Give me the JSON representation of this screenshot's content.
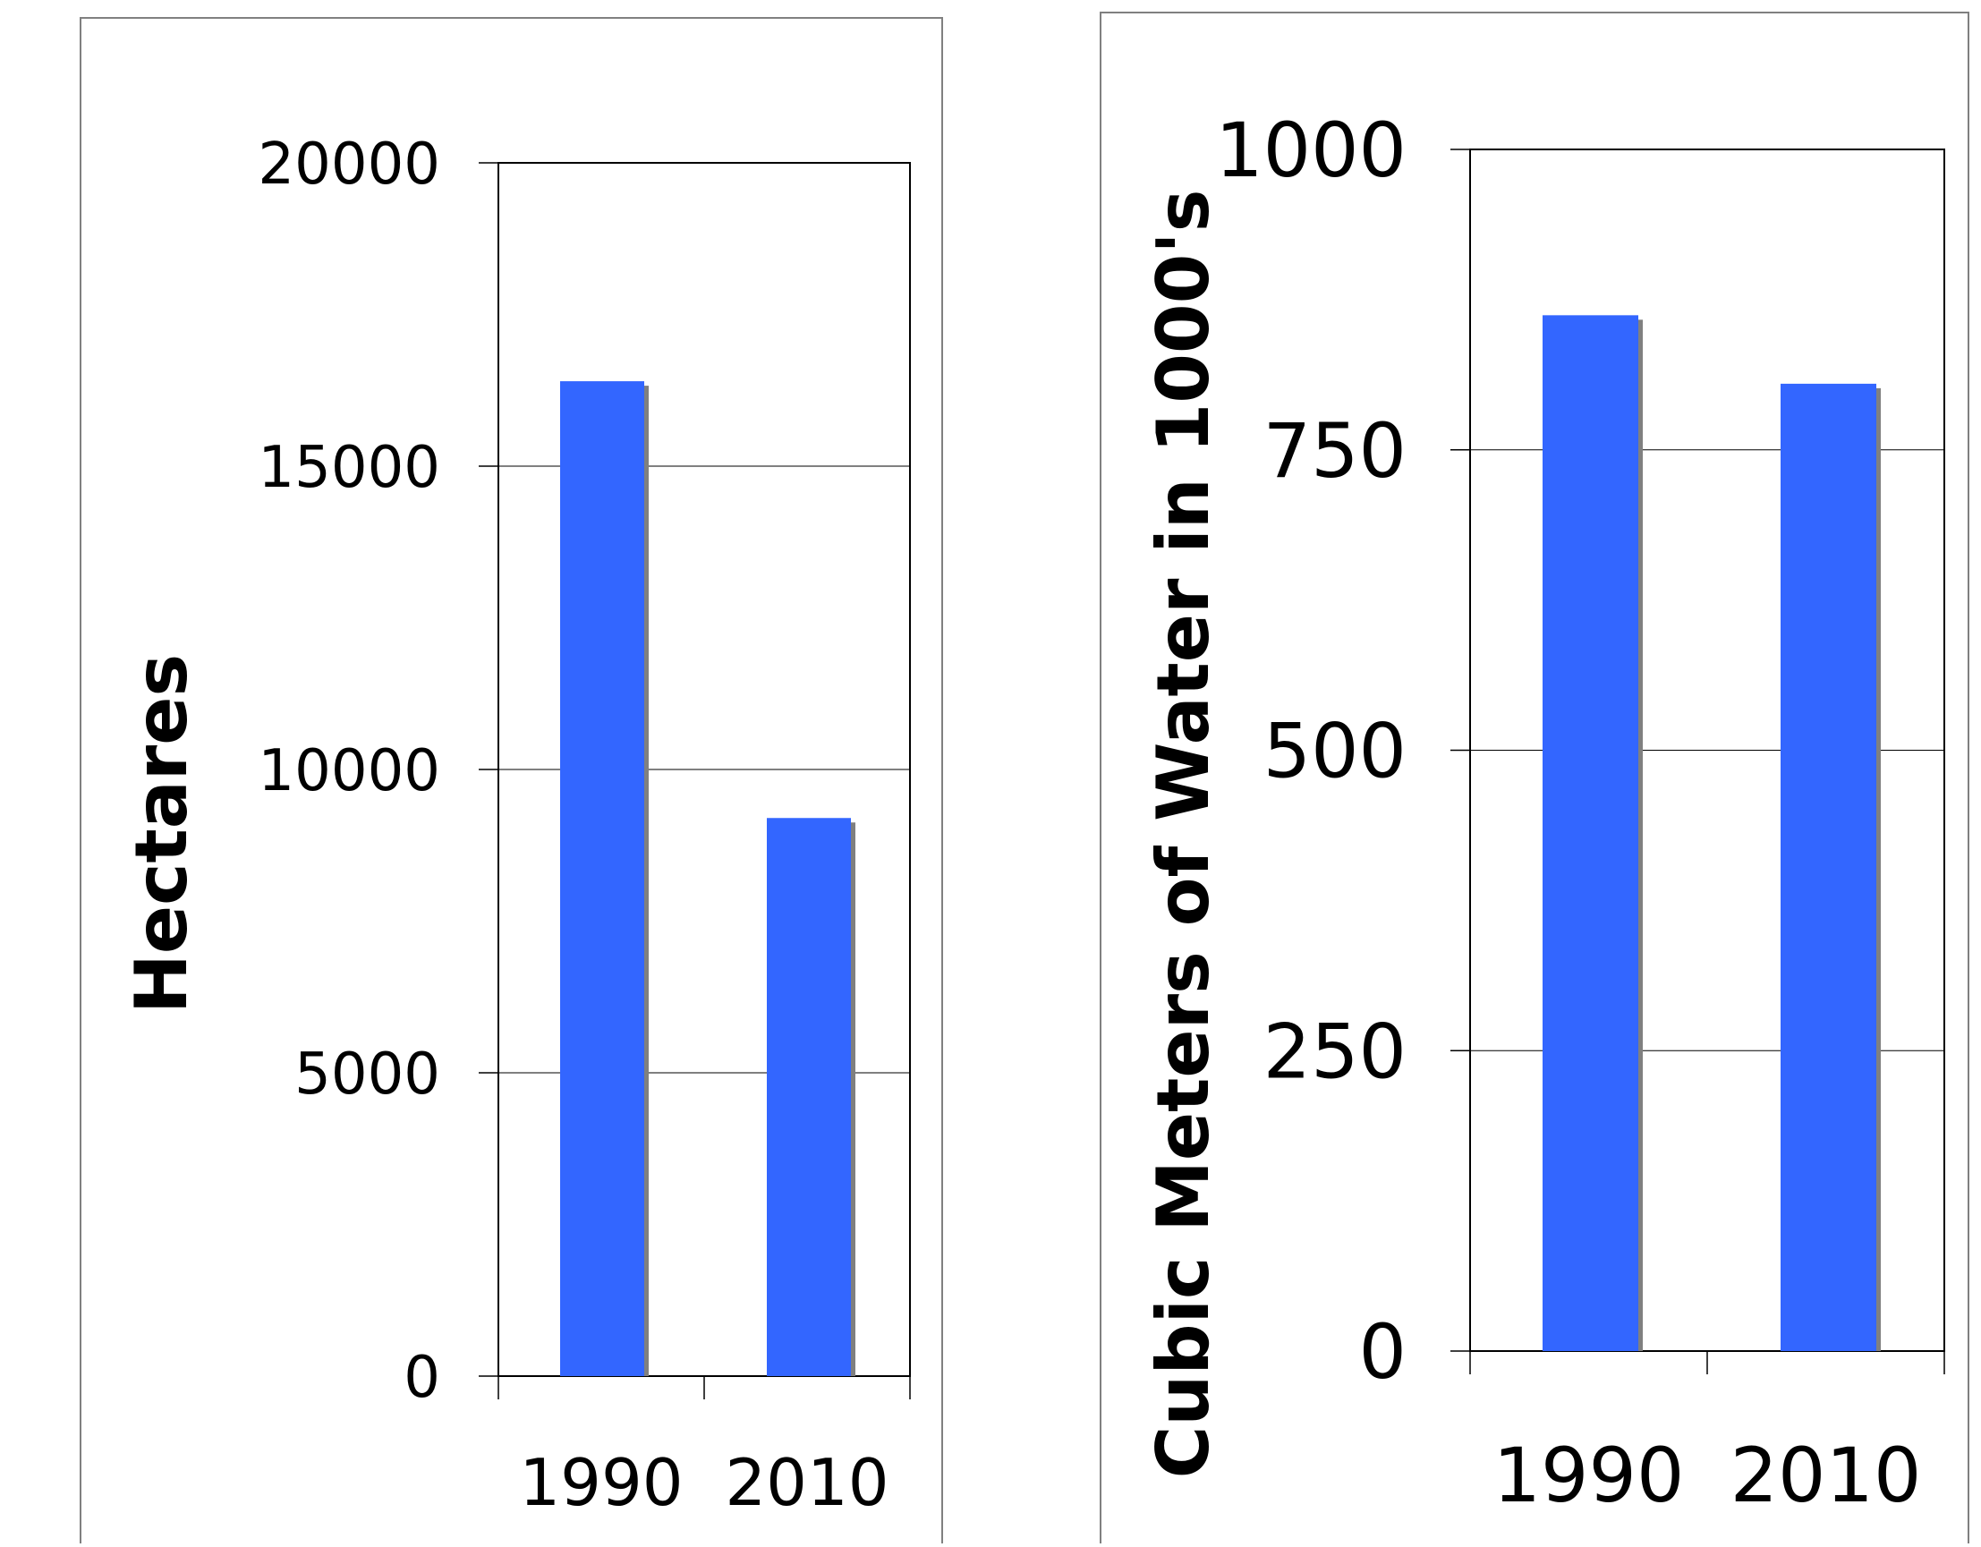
{
  "chart_data": [
    {
      "type": "bar",
      "categories": [
        "1990",
        "2010"
      ],
      "values": [
        16400,
        9200
      ],
      "xlabel": "",
      "ylabel": "Hectares",
      "ylim": [
        0,
        20000
      ],
      "yticks": [
        "0",
        "5000",
        "10000",
        "15000",
        "20000"
      ],
      "grid": true,
      "legend": "none",
      "bar_color": "#3366FF",
      "shadow_color": "#808080"
    },
    {
      "type": "bar",
      "categories": [
        "1990",
        "2010"
      ],
      "values": [
        862,
        805
      ],
      "xlabel": "",
      "ylabel": "Cubic Meters of Water in 1000's",
      "ylim": [
        0,
        1000
      ],
      "yticks": [
        "0",
        "250",
        "500",
        "750",
        "1000"
      ],
      "grid": true,
      "legend": "none",
      "bar_color": "#3366FF",
      "shadow_color": "#808080"
    }
  ]
}
